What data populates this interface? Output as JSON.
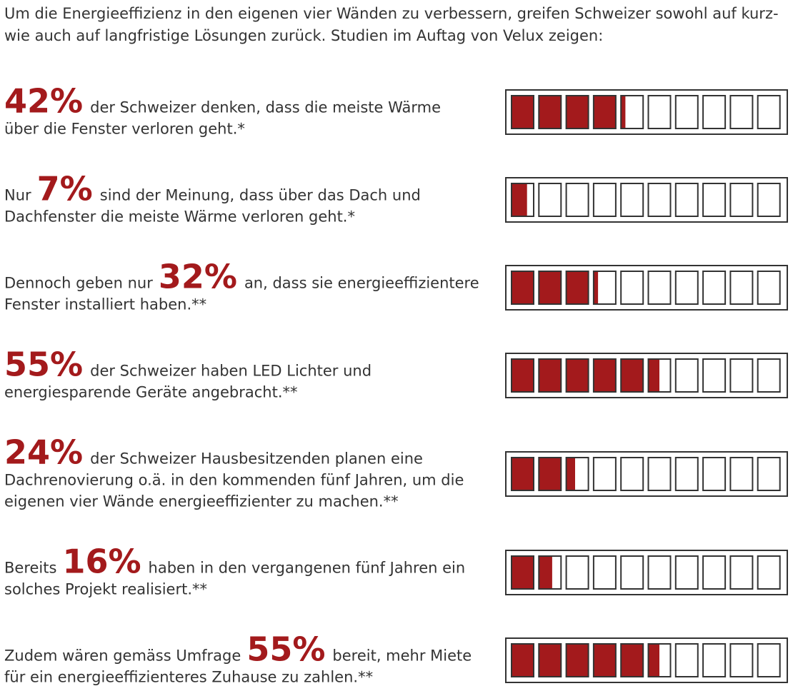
{
  "intro": "Um die Energieeffizienz in den eigenen vier Wänden zu verbessern, greifen Schweizer sowohl auf kurz- wie auch auf langfristige Lösungen zurück. Studien im Auftag von Velux zeigen:",
  "chart_data": {
    "type": "cell-bar",
    "color": "#a31a1c",
    "xlim": [
      0,
      100
    ],
    "items": [
      {
        "before": "",
        "value": 42,
        "value_label": "42%",
        "after": "der Schweizer denken, dass die meiste Wärme über die Fenster verloren geht.*"
      },
      {
        "before": "Nur",
        "value": 7,
        "value_label": "7%",
        "after": "sind der Meinung, dass über das Dach und Dachfenster die meiste Wärme verloren geht.*"
      },
      {
        "before": "Dennoch geben nur",
        "value": 32,
        "value_label": "32%",
        "after": "an, dass sie energieeffizientere Fenster installiert haben.**"
      },
      {
        "before": "",
        "value": 55,
        "value_label": "55%",
        "after": "der Schweizer haben LED Lichter und energiesparende Geräte angebracht.**"
      },
      {
        "before": "",
        "value": 24,
        "value_label": "24%",
        "after": "der Schweizer Hausbesitzenden planen eine Dachrenovierung o.ä. in den kommenden fünf Jahren, um die eigenen vier Wände energieeffizienter zu machen.**"
      },
      {
        "before": "Bereits",
        "value": 16,
        "value_label": "16%",
        "after": "haben in den vergangenen fünf Jahren ein solches Projekt realisiert.**"
      },
      {
        "before": "Zudem wären gemäss Umfrage",
        "value": 55,
        "value_label": "55%",
        "after": "bereit, mehr Miete für ein energieeffizienteres Zuhause zu zahlen.**"
      }
    ]
  }
}
